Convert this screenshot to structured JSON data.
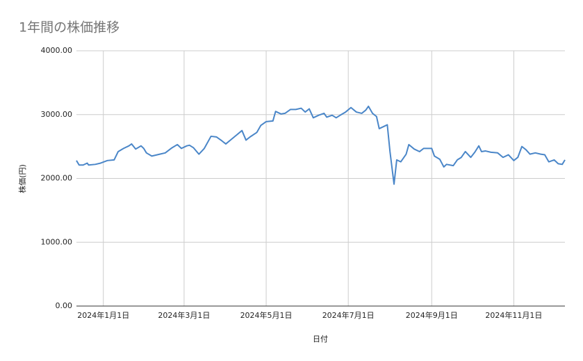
{
  "chart_data": {
    "type": "line",
    "title": "1年間の株価推移",
    "y_label": "株価(円)",
    "x_label": "日付",
    "color": "#4a86c8",
    "grid": true,
    "ylim": [
      0,
      4000
    ],
    "yticks": [
      {
        "value": 0,
        "label": "0.00"
      },
      {
        "value": 1000,
        "label": "1000.00"
      },
      {
        "value": 2000,
        "label": "2000.00"
      },
      {
        "value": 3000,
        "label": "3000.00"
      },
      {
        "value": 4000,
        "label": "4000.00"
      }
    ],
    "xlim": [
      "2023-12-12",
      "2024-12-09"
    ],
    "xticks": [
      {
        "value": "2024-01-01",
        "label": "2024年1月1日"
      },
      {
        "value": "2024-03-01",
        "label": "2024年3月1日"
      },
      {
        "value": "2024-05-01",
        "label": "2024年5月1日"
      },
      {
        "value": "2024-07-01",
        "label": "2024年7月1日"
      },
      {
        "value": "2024-09-01",
        "label": "2024年9月1日"
      },
      {
        "value": "2024-11-01",
        "label": "2024年11月1日"
      }
    ],
    "x": [
      "2023-12-12",
      "2023-12-14",
      "2023-12-17",
      "2023-12-20",
      "2023-12-21",
      "2023-12-26",
      "2023-12-30",
      "2024-01-04",
      "2024-01-09",
      "2024-01-12",
      "2024-01-16",
      "2024-01-20",
      "2024-01-22",
      "2024-01-25",
      "2024-01-29",
      "2024-01-31",
      "2024-02-02",
      "2024-02-06",
      "2024-02-12",
      "2024-02-16",
      "2024-02-21",
      "2024-02-25",
      "2024-02-28",
      "2024-03-03",
      "2024-03-05",
      "2024-03-08",
      "2024-03-12",
      "2024-03-16",
      "2024-03-21",
      "2024-03-25",
      "2024-03-29",
      "2024-04-01",
      "2024-04-05",
      "2024-04-09",
      "2024-04-13",
      "2024-04-16",
      "2024-04-19",
      "2024-04-24",
      "2024-04-27",
      "2024-05-01",
      "2024-05-06",
      "2024-05-08",
      "2024-05-12",
      "2024-05-15",
      "2024-05-19",
      "2024-05-23",
      "2024-05-27",
      "2024-05-30",
      "2024-06-02",
      "2024-06-05",
      "2024-06-09",
      "2024-06-13",
      "2024-06-15",
      "2024-06-19",
      "2024-06-22",
      "2024-06-25",
      "2024-06-29",
      "2024-07-03",
      "2024-07-07",
      "2024-07-11",
      "2024-07-14",
      "2024-07-16",
      "2024-07-19",
      "2024-07-22",
      "2024-07-24",
      "2024-07-30",
      "2024-08-01",
      "2024-08-04",
      "2024-08-06",
      "2024-08-09",
      "2024-08-13",
      "2024-08-15",
      "2024-08-19",
      "2024-08-23",
      "2024-08-26",
      "2024-09-01",
      "2024-09-03",
      "2024-09-07",
      "2024-09-10",
      "2024-09-12",
      "2024-09-17",
      "2024-09-20",
      "2024-09-23",
      "2024-09-26",
      "2024-09-30",
      "2024-10-03",
      "2024-10-06",
      "2024-10-08",
      "2024-10-11",
      "2024-10-15",
      "2024-10-20",
      "2024-10-24",
      "2024-10-28",
      "2024-11-01",
      "2024-11-04",
      "2024-11-07",
      "2024-11-10",
      "2024-11-13",
      "2024-11-17",
      "2024-11-21",
      "2024-11-24",
      "2024-11-27",
      "2024-12-01",
      "2024-12-04",
      "2024-12-07",
      "2024-12-09"
    ],
    "values": [
      2280,
      2210,
      2210,
      2240,
      2210,
      2220,
      2240,
      2280,
      2290,
      2420,
      2470,
      2510,
      2540,
      2460,
      2510,
      2470,
      2400,
      2350,
      2380,
      2400,
      2480,
      2530,
      2470,
      2510,
      2520,
      2480,
      2380,
      2470,
      2660,
      2650,
      2590,
      2540,
      2610,
      2680,
      2750,
      2600,
      2650,
      2720,
      2830,
      2890,
      2900,
      3050,
      3010,
      3020,
      3080,
      3080,
      3100,
      3040,
      3090,
      2950,
      2990,
      3020,
      2960,
      2990,
      2950,
      2990,
      3040,
      3110,
      3040,
      3020,
      3070,
      3130,
      3020,
      2970,
      2780,
      2840,
      2420,
      1910,
      2290,
      2260,
      2380,
      2530,
      2460,
      2420,
      2470,
      2470,
      2350,
      2300,
      2180,
      2220,
      2200,
      2290,
      2330,
      2420,
      2330,
      2410,
      2510,
      2420,
      2430,
      2410,
      2400,
      2330,
      2370,
      2280,
      2330,
      2500,
      2450,
      2380,
      2400,
      2380,
      2370,
      2260,
      2290,
      2230,
      2220,
      2290
    ]
  }
}
